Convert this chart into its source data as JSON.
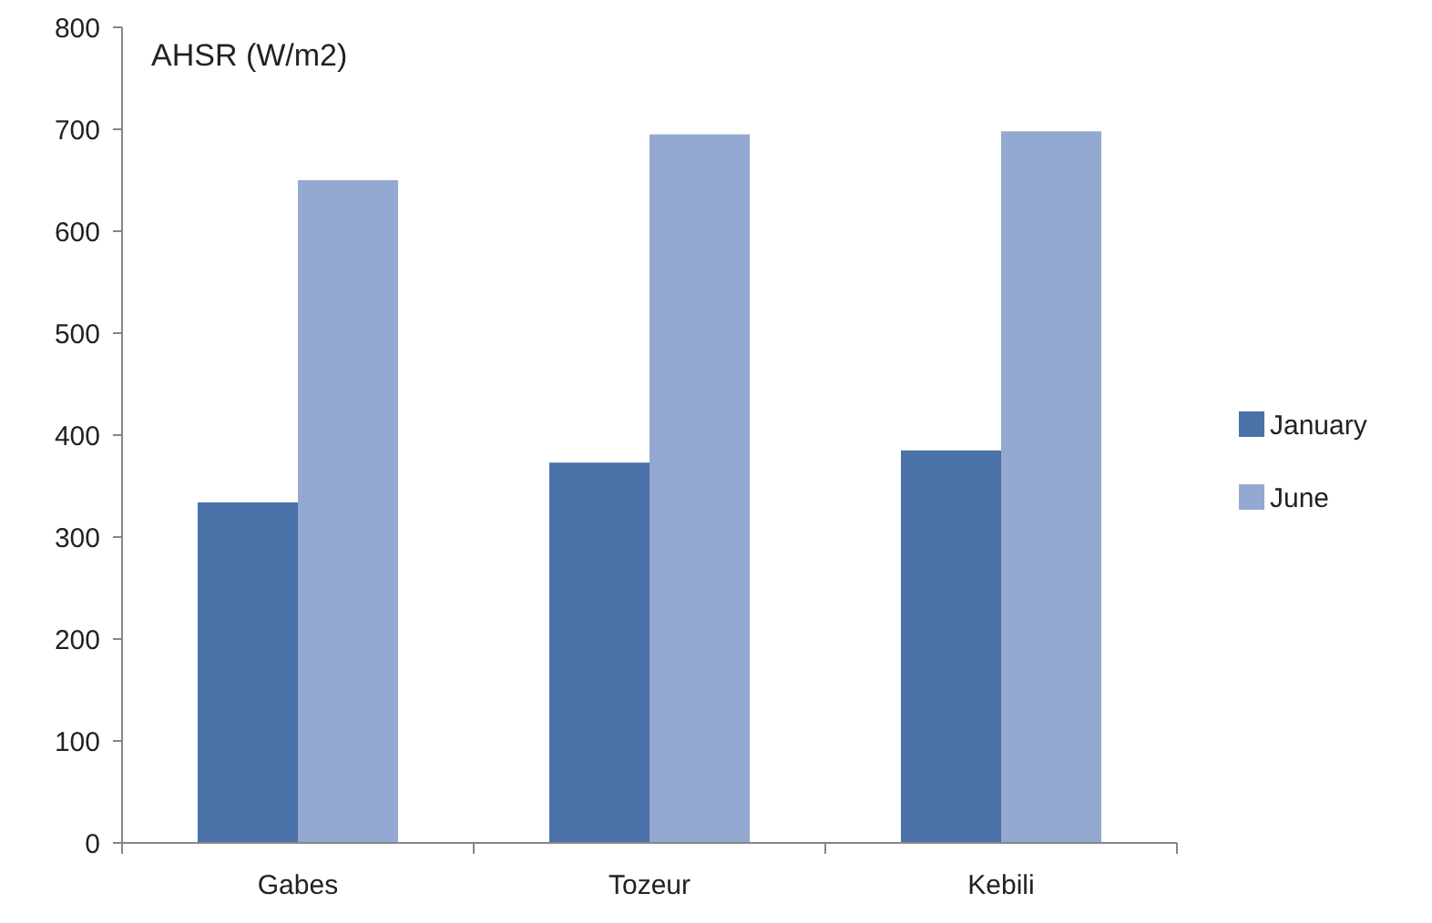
{
  "chart_data": {
    "type": "bar",
    "ylabel": "AHSR (W/m2)",
    "categories": [
      "Gabes",
      "Tozeur",
      "Kebili"
    ],
    "series": [
      {
        "name": "January",
        "color": "#4a72a8",
        "values": [
          334,
          373,
          385
        ]
      },
      {
        "name": "June",
        "color": "#94a9d1",
        "values": [
          650,
          695,
          698
        ]
      }
    ],
    "ylim": [
      0,
      800
    ],
    "yticks": [
      0,
      100,
      200,
      300,
      400,
      500,
      600,
      700,
      800
    ],
    "grid": false,
    "legend": "right"
  }
}
